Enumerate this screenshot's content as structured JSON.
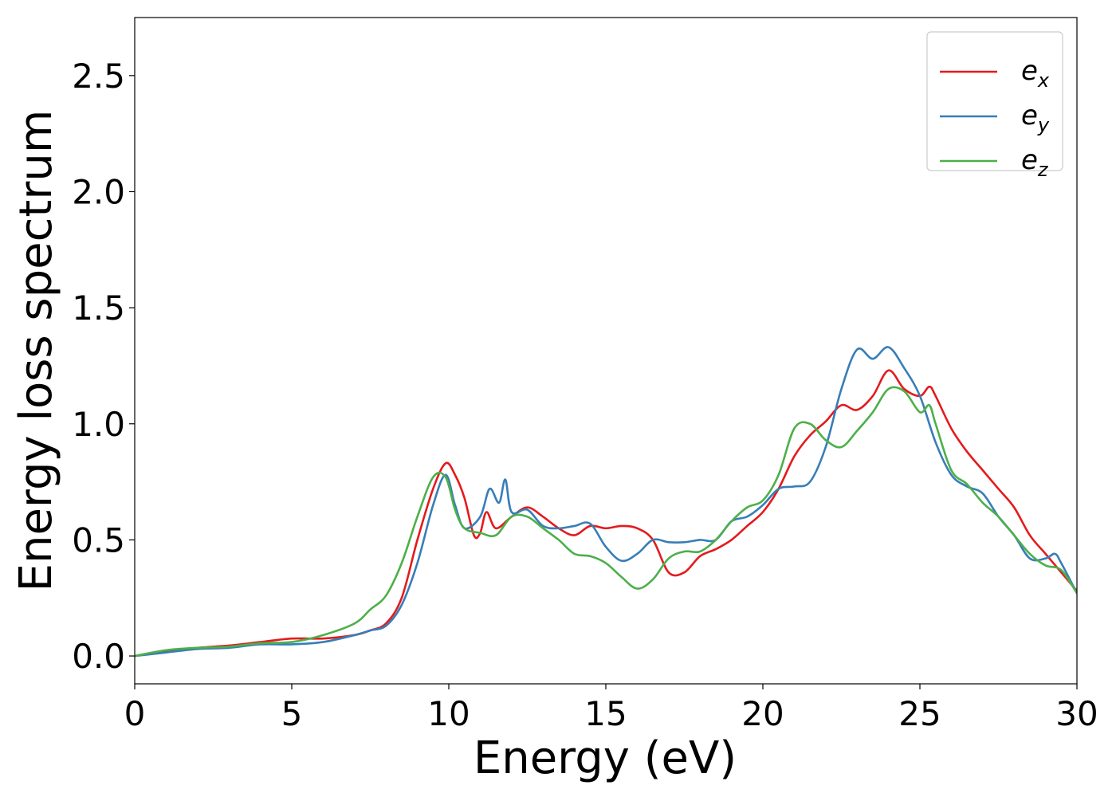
{
  "chart_data": {
    "type": "line",
    "title": "",
    "xlabel": "Energy (eV)",
    "ylabel": "Energy loss spectrum",
    "xlim": [
      0,
      30
    ],
    "ylim": [
      -0.12,
      2.75
    ],
    "xticks": [
      0,
      5,
      10,
      15,
      20,
      25,
      30
    ],
    "xtick_labels": [
      "0",
      "5",
      "10",
      "15",
      "20",
      "25",
      "30"
    ],
    "yticks": [
      0.0,
      0.5,
      1.0,
      1.5,
      2.0,
      2.5
    ],
    "ytick_labels": [
      "0.0",
      "0.5",
      "1.0",
      "1.5",
      "2.0",
      "2.5"
    ],
    "grid": false,
    "legend_position": "top-right",
    "series": [
      {
        "name": "e_x",
        "label_base": "e",
        "label_sub": "x",
        "color": "#e41a1c",
        "points": [
          [
            0,
            0.0
          ],
          [
            1,
            0.02
          ],
          [
            2,
            0.035
          ],
          [
            3,
            0.045
          ],
          [
            4,
            0.06
          ],
          [
            5,
            0.075
          ],
          [
            6,
            0.075
          ],
          [
            7,
            0.09
          ],
          [
            7.5,
            0.11
          ],
          [
            8,
            0.14
          ],
          [
            8.5,
            0.25
          ],
          [
            9,
            0.5
          ],
          [
            9.5,
            0.72
          ],
          [
            9.9,
            0.83
          ],
          [
            10.2,
            0.78
          ],
          [
            10.5,
            0.68
          ],
          [
            10.8,
            0.52
          ],
          [
            11,
            0.53
          ],
          [
            11.2,
            0.62
          ],
          [
            11.5,
            0.55
          ],
          [
            12,
            0.6
          ],
          [
            12.5,
            0.64
          ],
          [
            13,
            0.6
          ],
          [
            13.5,
            0.55
          ],
          [
            14,
            0.52
          ],
          [
            14.5,
            0.56
          ],
          [
            15,
            0.55
          ],
          [
            15.5,
            0.56
          ],
          [
            16,
            0.55
          ],
          [
            16.5,
            0.5
          ],
          [
            17,
            0.36
          ],
          [
            17.5,
            0.36
          ],
          [
            18,
            0.43
          ],
          [
            18.5,
            0.46
          ],
          [
            19,
            0.5
          ],
          [
            19.5,
            0.56
          ],
          [
            20,
            0.62
          ],
          [
            20.5,
            0.72
          ],
          [
            21,
            0.86
          ],
          [
            21.5,
            0.95
          ],
          [
            22,
            1.01
          ],
          [
            22.5,
            1.08
          ],
          [
            23,
            1.06
          ],
          [
            23.5,
            1.12
          ],
          [
            24,
            1.23
          ],
          [
            24.5,
            1.15
          ],
          [
            25,
            1.12
          ],
          [
            25.3,
            1.16
          ],
          [
            25.5,
            1.12
          ],
          [
            26,
            0.98
          ],
          [
            26.5,
            0.88
          ],
          [
            27,
            0.8
          ],
          [
            27.5,
            0.72
          ],
          [
            28,
            0.64
          ],
          [
            28.5,
            0.52
          ],
          [
            29,
            0.44
          ],
          [
            29.5,
            0.36
          ],
          [
            30,
            0.28
          ]
        ]
      },
      {
        "name": "e_y",
        "label_base": "e",
        "label_sub": "y",
        "color": "#377eb8",
        "points": [
          [
            0,
            0.0
          ],
          [
            1,
            0.015
          ],
          [
            2,
            0.03
          ],
          [
            3,
            0.035
          ],
          [
            4,
            0.05
          ],
          [
            5,
            0.05
          ],
          [
            6,
            0.06
          ],
          [
            7,
            0.09
          ],
          [
            7.5,
            0.11
          ],
          [
            8,
            0.13
          ],
          [
            8.5,
            0.22
          ],
          [
            9,
            0.4
          ],
          [
            9.5,
            0.65
          ],
          [
            9.9,
            0.78
          ],
          [
            10.2,
            0.65
          ],
          [
            10.5,
            0.55
          ],
          [
            11,
            0.6
          ],
          [
            11.3,
            0.72
          ],
          [
            11.6,
            0.66
          ],
          [
            11.8,
            0.76
          ],
          [
            12,
            0.62
          ],
          [
            12.5,
            0.63
          ],
          [
            13,
            0.56
          ],
          [
            13.5,
            0.55
          ],
          [
            14,
            0.56
          ],
          [
            14.5,
            0.57
          ],
          [
            15,
            0.47
          ],
          [
            15.5,
            0.41
          ],
          [
            16,
            0.44
          ],
          [
            16.5,
            0.5
          ],
          [
            17,
            0.49
          ],
          [
            17.5,
            0.49
          ],
          [
            18,
            0.5
          ],
          [
            18.5,
            0.5
          ],
          [
            19,
            0.58
          ],
          [
            19.5,
            0.6
          ],
          [
            20,
            0.65
          ],
          [
            20.5,
            0.72
          ],
          [
            21,
            0.73
          ],
          [
            21.5,
            0.75
          ],
          [
            22,
            0.9
          ],
          [
            22.5,
            1.15
          ],
          [
            23,
            1.32
          ],
          [
            23.5,
            1.28
          ],
          [
            24,
            1.33
          ],
          [
            24.5,
            1.24
          ],
          [
            25,
            1.12
          ],
          [
            25.5,
            0.92
          ],
          [
            26,
            0.78
          ],
          [
            26.5,
            0.73
          ],
          [
            27,
            0.7
          ],
          [
            27.5,
            0.6
          ],
          [
            28,
            0.52
          ],
          [
            28.5,
            0.42
          ],
          [
            29,
            0.42
          ],
          [
            29.3,
            0.44
          ],
          [
            29.5,
            0.4
          ],
          [
            30,
            0.27
          ]
        ]
      },
      {
        "name": "e_z",
        "label_base": "e",
        "label_sub": "z",
        "color": "#4daf4a",
        "points": [
          [
            0,
            0.0
          ],
          [
            1,
            0.025
          ],
          [
            2,
            0.035
          ],
          [
            3,
            0.04
          ],
          [
            4,
            0.055
          ],
          [
            5,
            0.06
          ],
          [
            6,
            0.09
          ],
          [
            7,
            0.14
          ],
          [
            7.5,
            0.2
          ],
          [
            8,
            0.26
          ],
          [
            8.5,
            0.4
          ],
          [
            9,
            0.6
          ],
          [
            9.5,
            0.77
          ],
          [
            9.9,
            0.77
          ],
          [
            10.2,
            0.63
          ],
          [
            10.5,
            0.55
          ],
          [
            11,
            0.53
          ],
          [
            11.5,
            0.52
          ],
          [
            12,
            0.6
          ],
          [
            12.5,
            0.6
          ],
          [
            13,
            0.55
          ],
          [
            13.5,
            0.5
          ],
          [
            14,
            0.44
          ],
          [
            14.5,
            0.43
          ],
          [
            15,
            0.4
          ],
          [
            15.5,
            0.34
          ],
          [
            16,
            0.29
          ],
          [
            16.5,
            0.33
          ],
          [
            17,
            0.42
          ],
          [
            17.5,
            0.45
          ],
          [
            18,
            0.45
          ],
          [
            18.5,
            0.5
          ],
          [
            19,
            0.58
          ],
          [
            19.5,
            0.64
          ],
          [
            20,
            0.67
          ],
          [
            20.5,
            0.78
          ],
          [
            21,
            0.98
          ],
          [
            21.5,
            1.0
          ],
          [
            22,
            0.93
          ],
          [
            22.5,
            0.9
          ],
          [
            23,
            0.97
          ],
          [
            23.5,
            1.05
          ],
          [
            24,
            1.15
          ],
          [
            24.5,
            1.14
          ],
          [
            25,
            1.05
          ],
          [
            25.3,
            1.08
          ],
          [
            25.5,
            1.0
          ],
          [
            26,
            0.8
          ],
          [
            26.5,
            0.74
          ],
          [
            27,
            0.66
          ],
          [
            27.5,
            0.6
          ],
          [
            28,
            0.52
          ],
          [
            28.5,
            0.44
          ],
          [
            29,
            0.39
          ],
          [
            29.5,
            0.37
          ],
          [
            30,
            0.27
          ]
        ]
      }
    ]
  }
}
